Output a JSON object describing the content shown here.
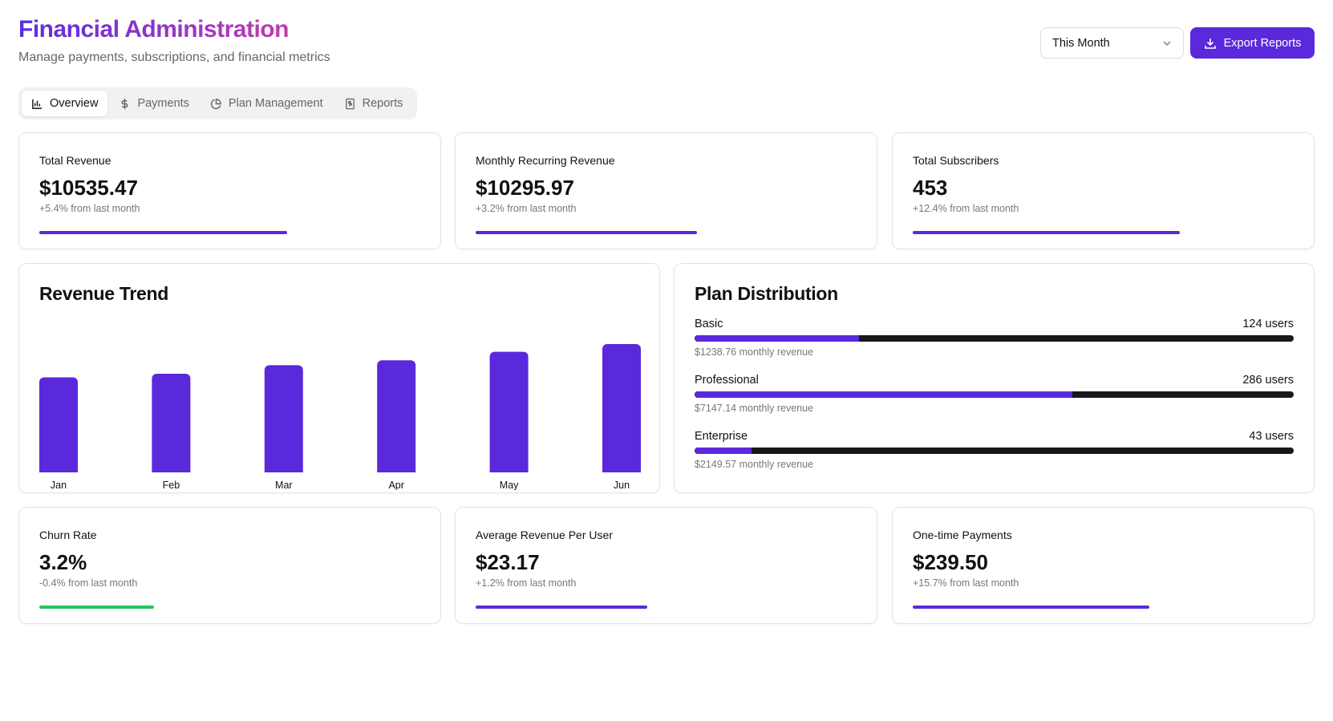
{
  "header": {
    "title": "Financial Administration",
    "subtitle": "Manage payments, subscriptions, and financial metrics"
  },
  "tabs": [
    {
      "label": "Overview",
      "icon": "bar-chart-icon",
      "active": true
    },
    {
      "label": "Payments",
      "icon": "dollar-icon",
      "active": false
    },
    {
      "label": "Plan Management",
      "icon": "pie-chart-icon",
      "active": false
    },
    {
      "label": "Reports",
      "icon": "receipt-icon",
      "active": false
    }
  ],
  "period_select": {
    "value": "This Month"
  },
  "export_button": {
    "label": "Export Reports",
    "icon": "download-icon"
  },
  "colors": {
    "accent": "#5a29dc",
    "positive": "#22c55e",
    "track": "#18181b"
  },
  "stats_top": [
    {
      "label": "Total Revenue",
      "value": "$10535.47",
      "change": "+5.4% from last month",
      "progress": 0.65,
      "color": "#5a29dc"
    },
    {
      "label": "Monthly Recurring Revenue",
      "value": "$10295.97",
      "change": "+3.2% from last month",
      "progress": 0.58,
      "color": "#5a29dc"
    },
    {
      "label": "Total Subscribers",
      "value": "453",
      "change": "+12.4% from last month",
      "progress": 0.7,
      "color": "#5a29dc"
    }
  ],
  "revenue_trend": {
    "title": "Revenue Trend",
    "chart_data": {
      "type": "bar",
      "categories": [
        "Jan",
        "Feb",
        "Mar",
        "Apr",
        "May",
        "Jun"
      ],
      "values": [
        7800,
        8100,
        8800,
        9200,
        9900,
        10535
      ],
      "ylim": [
        0,
        10535
      ],
      "grid": false,
      "color": "#5a29dc"
    }
  },
  "plan_distribution": {
    "title": "Plan Distribution",
    "plans": [
      {
        "name": "Basic",
        "users": "124 users",
        "revenue": "$1238.76 monthly revenue",
        "share": 0.274
      },
      {
        "name": "Professional",
        "users": "286 users",
        "revenue": "$7147.14 monthly revenue",
        "share": 0.631
      },
      {
        "name": "Enterprise",
        "users": "43 users",
        "revenue": "$2149.57 monthly revenue",
        "share": 0.095
      }
    ]
  },
  "stats_bottom": [
    {
      "label": "Churn Rate",
      "value": "3.2%",
      "change": "-0.4% from last month",
      "progress": 0.3,
      "color": "#22c55e"
    },
    {
      "label": "Average Revenue Per User",
      "value": "$23.17",
      "change": "+1.2% from last month",
      "progress": 0.45,
      "color": "#5a29dc"
    },
    {
      "label": "One-time Payments",
      "value": "$239.50",
      "change": "+15.7% from last month",
      "progress": 0.62,
      "color": "#5a29dc"
    }
  ]
}
